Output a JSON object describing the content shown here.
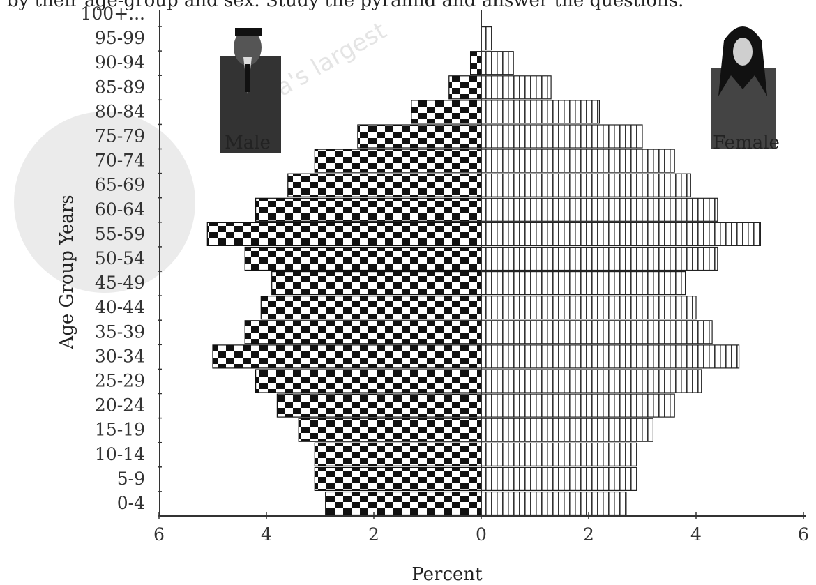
{
  "header_text": "by their age-group and sex. Study the pyramid and answer the questions.",
  "watermark_text": "India's largest",
  "chart_data": {
    "type": "population-pyramid",
    "title": "",
    "xlabel": "Percent",
    "ylabel": "Age Group Years",
    "xlim": [
      -6,
      6
    ],
    "x_ticks": [
      6,
      4,
      2,
      0,
      2,
      4,
      6
    ],
    "grid": false,
    "categories": [
      "0-4",
      "5-9",
      "10-14",
      "15-19",
      "20-24",
      "25-29",
      "30-34",
      "35-39",
      "40-44",
      "45-49",
      "50-54",
      "55-59",
      "60-64",
      "65-69",
      "70-74",
      "75-79",
      "80-84",
      "85-89",
      "90-94",
      "95-99",
      "100+..."
    ],
    "series": [
      {
        "name": "Male",
        "side": "left",
        "values": [
          2.9,
          3.1,
          3.1,
          3.4,
          3.8,
          4.2,
          5.0,
          4.4,
          4.1,
          3.9,
          4.4,
          5.1,
          4.2,
          3.6,
          3.1,
          2.3,
          1.3,
          0.6,
          0.2,
          0.0,
          0.0
        ]
      },
      {
        "name": "Female",
        "side": "right",
        "values": [
          2.7,
          2.9,
          2.9,
          3.2,
          3.6,
          4.1,
          4.8,
          4.3,
          4.0,
          3.8,
          4.4,
          5.2,
          4.4,
          3.9,
          3.6,
          3.0,
          2.2,
          1.3,
          0.6,
          0.2,
          0.0
        ]
      }
    ],
    "legend": {
      "male_label": "Male",
      "female_label": "Female",
      "placement": "top-left and top-right"
    }
  }
}
